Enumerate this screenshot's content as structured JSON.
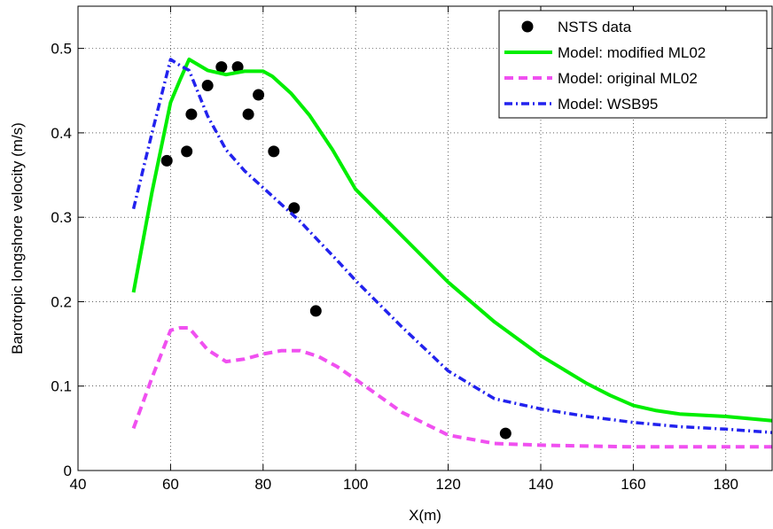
{
  "chart_data": {
    "type": "line",
    "title": "",
    "xlabel": "X(m)",
    "ylabel": "Barotropic longshore velocity (m/s)",
    "xlim": [
      40,
      190
    ],
    "ylim": [
      0,
      0.55
    ],
    "xticks": [
      40,
      60,
      80,
      100,
      120,
      140,
      160,
      180
    ],
    "yticks": [
      0,
      0.1,
      0.2,
      0.3,
      0.4,
      0.5
    ],
    "grid": true,
    "legend_position": "top-right",
    "series": [
      {
        "name": "NSTS data",
        "kind": "scatter",
        "color": "#000000",
        "x": [
          59.2,
          63.5,
          64.5,
          68,
          71,
          74.5,
          76.8,
          79,
          82.3,
          86.7,
          91.4,
          132.4
        ],
        "y": [
          0.367,
          0.378,
          0.422,
          0.456,
          0.478,
          0.478,
          0.422,
          0.445,
          0.378,
          0.311,
          0.189,
          0.044
        ]
      },
      {
        "name": "Model: modified ML02",
        "kind": "line",
        "color": "#00ee00",
        "style": "solid",
        "x": [
          52,
          56,
          60,
          62,
          64,
          68,
          72,
          76,
          80,
          82,
          86,
          90,
          95,
          100,
          110,
          120,
          130,
          140,
          150,
          155,
          160,
          165,
          170,
          180,
          190
        ],
        "y": [
          0.211,
          0.33,
          0.436,
          0.462,
          0.487,
          0.474,
          0.469,
          0.473,
          0.473,
          0.467,
          0.447,
          0.421,
          0.38,
          0.333,
          0.278,
          0.223,
          0.176,
          0.136,
          0.103,
          0.089,
          0.077,
          0.071,
          0.067,
          0.064,
          0.059
        ]
      },
      {
        "name": "Model: original ML02",
        "kind": "line",
        "color": "#f050f0",
        "style": "dashed",
        "x": [
          52,
          56,
          60,
          62,
          64,
          68,
          72,
          76,
          80,
          84,
          88,
          92,
          96,
          100,
          110,
          120,
          130,
          140,
          150,
          160,
          170,
          180,
          190
        ],
        "y": [
          0.05,
          0.11,
          0.166,
          0.169,
          0.169,
          0.143,
          0.129,
          0.132,
          0.138,
          0.142,
          0.142,
          0.135,
          0.123,
          0.108,
          0.069,
          0.042,
          0.032,
          0.03,
          0.029,
          0.028,
          0.028,
          0.028,
          0.028
        ]
      },
      {
        "name": "Model: WSB95",
        "kind": "line",
        "color": "#2222ee",
        "style": "dashdot",
        "x": [
          52,
          56,
          60,
          62,
          64,
          68,
          72,
          76,
          80,
          84,
          88,
          92,
          96,
          100,
          110,
          120,
          130,
          140,
          150,
          160,
          170,
          180,
          190
        ],
        "y": [
          0.31,
          0.4,
          0.487,
          0.48,
          0.474,
          0.42,
          0.38,
          0.355,
          0.335,
          0.315,
          0.295,
          0.272,
          0.249,
          0.225,
          0.17,
          0.118,
          0.085,
          0.073,
          0.064,
          0.057,
          0.052,
          0.049,
          0.045
        ]
      }
    ]
  }
}
